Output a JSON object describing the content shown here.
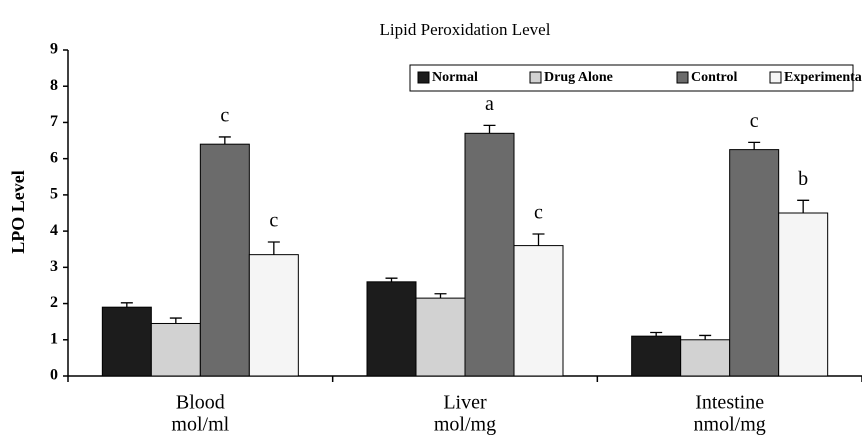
{
  "chart_data": {
    "type": "bar",
    "title": "Lipid Peroxidation Level",
    "y_label": "LPO Level",
    "categories": [
      [
        "Blood",
        "mol/ml"
      ],
      [
        "Liver",
        "mol/mg"
      ],
      [
        "Intestine",
        "nmol/mg"
      ]
    ],
    "series": [
      {
        "name": "Normal",
        "color": "#1c1c1c",
        "values": [
          1.9,
          2.6,
          1.1
        ],
        "errors": [
          0.12,
          0.1,
          0.1
        ]
      },
      {
        "name": "Drug Alone",
        "color": "#d2d2d2",
        "values": [
          1.45,
          2.15,
          1.0
        ],
        "errors": [
          0.15,
          0.12,
          0.12
        ]
      },
      {
        "name": "Control",
        "color": "#6b6b6b",
        "values": [
          6.4,
          6.7,
          6.25
        ],
        "errors": [
          0.2,
          0.22,
          0.2
        ],
        "labels": [
          "c",
          "a",
          "c"
        ]
      },
      {
        "name": "Experimental",
        "color": "#f5f5f5",
        "values": [
          3.35,
          3.6,
          4.5
        ],
        "errors": [
          0.35,
          0.32,
          0.35
        ],
        "labels": [
          "c",
          "c",
          "b"
        ]
      }
    ],
    "ylim": [
      0,
      9
    ],
    "yticks": [
      0,
      1,
      2,
      3,
      4,
      5,
      6,
      7,
      8,
      9
    ],
    "grid": false,
    "legend": "top-right"
  }
}
